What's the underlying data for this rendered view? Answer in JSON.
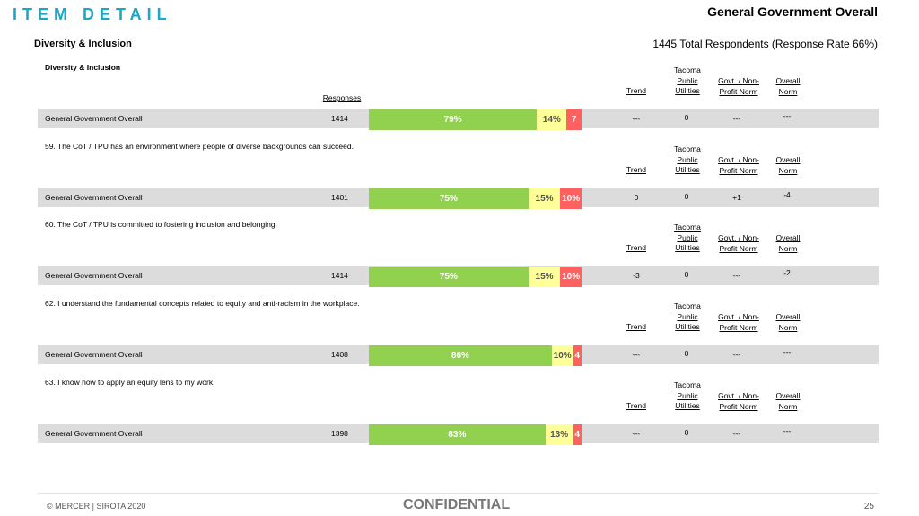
{
  "header": {
    "brand": "ITEM DETAIL",
    "title": "General Government Overall",
    "subtitle": "Diversity & Inclusion",
    "respondents": "1445 Total Respondents (Response Rate  66%)"
  },
  "columns": {
    "responses": "Responses",
    "trend": "Trend",
    "tpu_l1": "Tacoma",
    "tpu_l2": "Public",
    "tpu_l3": "Utilities",
    "govt_l1": "Govt. / Non-",
    "govt_l2": "Profit Norm",
    "overall_l1": "Overall",
    "overall_l2": "Norm"
  },
  "items": [
    {
      "question": "Diversity & Inclusion",
      "segment": "General Government Overall",
      "n": "1414",
      "fav": 79,
      "neu": 14,
      "unfav": 7,
      "fav_label": "79%",
      "neu_label": "14%",
      "unfav_label": "7",
      "trend": "---",
      "tpu": "0",
      "govt": "---",
      "overall": "---"
    },
    {
      "question": "59. The CoT / TPU has an environment where people of diverse backgrounds can succeed.",
      "segment": "General Government Overall",
      "n": "1401",
      "fav": 75,
      "neu": 15,
      "unfav": 10,
      "fav_label": "75%",
      "neu_label": "15%",
      "unfav_label": "10%",
      "trend": "0",
      "tpu": "0",
      "govt": "+1",
      "overall": "-4"
    },
    {
      "question": "60. The CoT / TPU is committed to fostering inclusion and belonging.",
      "segment": "General Government Overall",
      "n": "1414",
      "fav": 75,
      "neu": 15,
      "unfav": 10,
      "fav_label": "75%",
      "neu_label": "15%",
      "unfav_label": "10%",
      "trend": "-3",
      "tpu": "0",
      "govt": "---",
      "overall": "-2"
    },
    {
      "question": "62. I understand the fundamental concepts related to equity and anti-racism in the workplace.",
      "segment": "General Government Overall",
      "n": "1408",
      "fav": 86,
      "neu": 10,
      "unfav": 4,
      "fav_label": "86%",
      "neu_label": "10%",
      "unfav_label": "4",
      "trend": "---",
      "tpu": "0",
      "govt": "---",
      "overall": "---"
    },
    {
      "question": "63. I know how to apply an equity lens to my work.",
      "segment": "General Government Overall",
      "n": "1398",
      "fav": 83,
      "neu": 13,
      "unfav": 4,
      "fav_label": "83%",
      "neu_label": "13%",
      "unfav_label": "4",
      "trend": "---",
      "tpu": "0",
      "govt": "---",
      "overall": "---"
    }
  ],
  "colors": {
    "favorable": "#92d050",
    "neutral": "#ffff99",
    "unfavorable": "#ff6060",
    "brand": "#1aa7c9"
  },
  "footer": {
    "copyright": "© MERCER | SIROTA 2020",
    "confidential": "CONFIDENTIAL",
    "page": "25"
  }
}
